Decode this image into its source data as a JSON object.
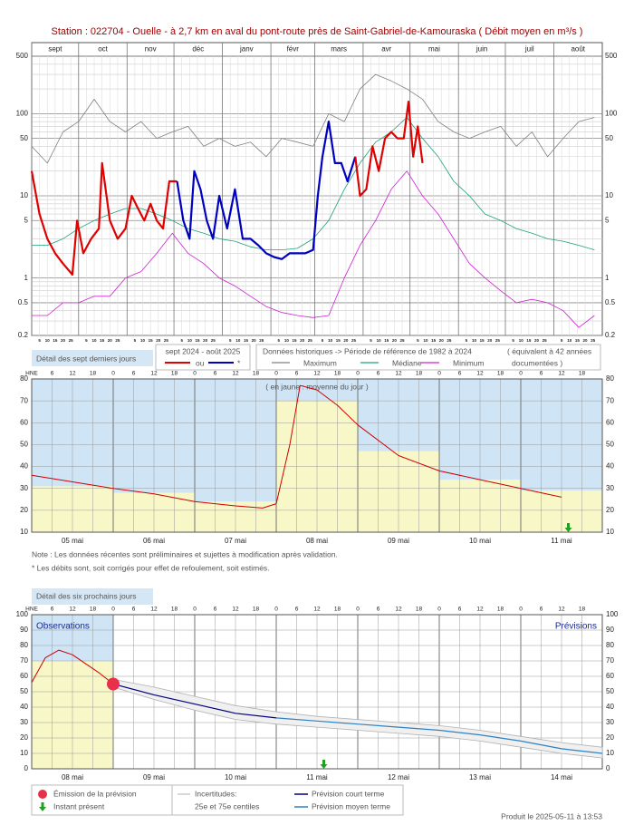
{
  "chart_data": [
    {
      "type": "line",
      "log_scale": true,
      "title": "Station : 022704     -  Ouelle - à 2,7 km en aval du pont-route près de Saint-Gabriel-de-Kamouraska   ( Débit moyen en m³/s )",
      "xlim": [
        0,
        365
      ],
      "xticks": [
        {
          "value": 0,
          "label": "sept"
        },
        {
          "value": 30,
          "label": "oct"
        },
        {
          "value": 61,
          "label": "nov"
        },
        {
          "value": 91,
          "label": "déc"
        },
        {
          "value": 122,
          "label": "janv"
        },
        {
          "value": 153,
          "label": "févr"
        },
        {
          "value": 181,
          "label": "mars"
        },
        {
          "value": 212,
          "label": "avr"
        },
        {
          "value": 242,
          "label": "mai"
        },
        {
          "value": 273,
          "label": "juin"
        },
        {
          "value": 303,
          "label": "juil"
        },
        {
          "value": 334,
          "label": "août"
        }
      ],
      "day_ticks": [
        5,
        10,
        15,
        20,
        25
      ],
      "ylim": [
        0.2,
        500
      ],
      "yticks": [
        0.2,
        0.5,
        1,
        5,
        10,
        50,
        100,
        500
      ],
      "minor_yticks": [
        0.3,
        0.4,
        0.6,
        0.7,
        0.8,
        0.9,
        2,
        3,
        4,
        6,
        7,
        8,
        9,
        20,
        30,
        40,
        60,
        70,
        80,
        90,
        200,
        300,
        400
      ],
      "grid": true,
      "legend_title": "sept 2024 - août 2025",
      "history_title": "Données historiques -> Période de référence  de 1982 à 2024",
      "history_note": [
        "( équivalent à 42 années",
        "documentées )"
      ],
      "series": [
        {
          "name": "Maximum",
          "color": "#808080",
          "x": [
            0,
            10,
            20,
            30,
            40,
            50,
            60,
            70,
            80,
            90,
            100,
            110,
            120,
            130,
            140,
            150,
            160,
            170,
            180,
            190,
            200,
            210,
            220,
            230,
            240,
            250,
            260,
            270,
            280,
            290,
            300,
            310,
            320,
            330,
            340,
            350,
            360
          ],
          "values": [
            40,
            25,
            60,
            80,
            150,
            80,
            60,
            80,
            50,
            60,
            70,
            40,
            50,
            40,
            45,
            30,
            50,
            45,
            40,
            100,
            80,
            200,
            300,
            250,
            200,
            150,
            80,
            60,
            50,
            60,
            70,
            40,
            60,
            30,
            50,
            80,
            90
          ]
        },
        {
          "name": "Médiane",
          "color": "#1fa07a",
          "x": [
            0,
            10,
            20,
            30,
            40,
            50,
            60,
            70,
            80,
            90,
            100,
            110,
            120,
            130,
            140,
            150,
            160,
            170,
            180,
            190,
            200,
            210,
            220,
            230,
            240,
            250,
            260,
            270,
            280,
            290,
            300,
            310,
            320,
            330,
            340,
            350,
            360
          ],
          "values": [
            2.5,
            2.5,
            3,
            4,
            5,
            6,
            7,
            7,
            6,
            5,
            4,
            3.5,
            3,
            2.8,
            2.4,
            2.2,
            2.2,
            2.3,
            3,
            5,
            12,
            25,
            45,
            60,
            90,
            50,
            30,
            15,
            10,
            6,
            5,
            4,
            3.5,
            3,
            2.8,
            2.5,
            2.2
          ]
        },
        {
          "name": "Minimum",
          "color": "#d020d0",
          "x": [
            0,
            10,
            20,
            30,
            40,
            50,
            60,
            70,
            80,
            90,
            100,
            110,
            120,
            130,
            140,
            150,
            160,
            170,
            180,
            190,
            200,
            210,
            220,
            230,
            240,
            250,
            260,
            270,
            280,
            290,
            300,
            310,
            320,
            330,
            340,
            350,
            360
          ],
          "values": [
            0.35,
            0.35,
            0.5,
            0.5,
            0.6,
            0.6,
            1,
            1.2,
            2,
            3.5,
            2,
            1.5,
            1,
            0.8,
            0.6,
            0.45,
            0.38,
            0.35,
            0.33,
            0.35,
            1,
            2.5,
            5,
            12,
            20,
            10,
            6,
            3,
            1.5,
            1,
            0.7,
            0.5,
            0.55,
            0.5,
            0.4,
            0.25,
            0.35
          ]
        },
        {
          "name": "ou",
          "color": "#e00000",
          "x": [
            0,
            5,
            10,
            15,
            20,
            26,
            29,
            33,
            38,
            43,
            45,
            50,
            55,
            60,
            64,
            68,
            72,
            76,
            80,
            84,
            88,
            93
          ],
          "values": [
            20,
            6,
            3,
            2,
            1.5,
            1.1,
            5,
            2,
            3,
            4,
            25,
            5,
            3,
            4,
            10,
            7,
            5,
            8,
            5,
            4,
            15,
            15
          ]
        },
        {
          "name": "*",
          "color": "#0000c0",
          "x": [
            93,
            97,
            101,
            104,
            108,
            112,
            116,
            120,
            125,
            130,
            135,
            140,
            145,
            150,
            155,
            160,
            165,
            170,
            175,
            180,
            183,
            186,
            190,
            194,
            198,
            202,
            207
          ],
          "values": [
            15,
            5,
            3,
            20,
            12,
            5,
            3,
            10,
            4,
            12,
            3,
            3,
            2.5,
            2,
            1.8,
            1.7,
            2,
            2,
            2,
            2.2,
            10,
            30,
            80,
            25,
            25,
            15,
            30
          ]
        },
        {
          "name": "ou",
          "color": "#e00000",
          "x": [
            207,
            210,
            214,
            218,
            222,
            226,
            230,
            234,
            238,
            241,
            244,
            247,
            250
          ],
          "values": [
            30,
            10,
            12,
            40,
            20,
            50,
            60,
            50,
            50,
            140,
            30,
            70,
            25
          ]
        }
      ]
    },
    {
      "type": "line",
      "title": "Détail des sept derniers jours",
      "categories": [
        "05 mai",
        "06 mai",
        "07 mai",
        "08 mai",
        "09 mai",
        "10 mai",
        "11 mai"
      ],
      "hour_axis_label": "HNE",
      "hour_ticks": [
        6,
        12,
        18,
        0
      ],
      "xlim": [
        0,
        168
      ],
      "ylim": [
        10,
        80
      ],
      "yticks": [
        10,
        20,
        30,
        40,
        50,
        60,
        70,
        80
      ],
      "grid": true,
      "annotation": "( en jaune : moyenne du jour )",
      "daily_means": [
        31,
        28,
        24,
        70,
        47,
        34,
        29
      ],
      "daily_mean_color": "#f7f7c8",
      "background_color": "#cfe5f6",
      "color": "#d00000",
      "x": [
        0,
        12,
        24,
        36,
        48,
        60,
        68,
        72,
        76,
        79,
        84,
        90,
        96,
        108,
        120,
        132,
        144,
        156
      ],
      "values": [
        36,
        33,
        30,
        27.5,
        24,
        22,
        21,
        23,
        50,
        77,
        75,
        68,
        59,
        45,
        38,
        34,
        30,
        26
      ],
      "present_x": 158,
      "present_color": "#20a020",
      "notes": [
        "Note : Les données récentes sont préliminaires et sujettes à modification après validation.",
        "* Les débits sont, soit corrigés pour effet de refoulement, soit estimés."
      ]
    },
    {
      "type": "forecast",
      "title": "Détail des six prochains jours",
      "categories": [
        "08 mai",
        "09 mai",
        "10 mai",
        "11 mai",
        "12 mai",
        "13 mai",
        "14 mai"
      ],
      "hour_axis_label": "HNE",
      "hour_ticks": [
        6,
        12,
        18,
        0
      ],
      "xlim": [
        0,
        168
      ],
      "ylim": [
        0,
        100
      ],
      "yticks": [
        0,
        10,
        20,
        30,
        40,
        50,
        60,
        70,
        80,
        90,
        100
      ],
      "grid": true,
      "observations_label": "Observations",
      "forecast_label": "Prévisions",
      "daily_means": [
        70,
        null,
        null,
        null,
        null,
        null,
        null
      ],
      "daily_mean_color": "#f7f7c8",
      "background_color": "#cfe5f6",
      "color": "#d00000",
      "x": [
        0,
        4,
        8,
        12,
        16,
        20,
        24
      ],
      "values": [
        56,
        72,
        77,
        74,
        68,
        62,
        55
      ],
      "uncertainty": {
        "name": "Incertitudes:",
        "sublabel": "25e et 75e centiles",
        "color": "#b0b0b0",
        "x": [
          24,
          36,
          48,
          60,
          72,
          84,
          96,
          108,
          120,
          132,
          144,
          156,
          168
        ],
        "upper": [
          58,
          53,
          47,
          41,
          37,
          34,
          32,
          30,
          28,
          25,
          21,
          17,
          14
        ],
        "lower": [
          53,
          45,
          38,
          32,
          29,
          27,
          25,
          23,
          21,
          18,
          14,
          10,
          7
        ]
      },
      "short_term": {
        "name": "Prévision court terme",
        "color": "#000080",
        "x": [
          24,
          36,
          48,
          60,
          72
        ],
        "values": [
          55,
          48,
          42,
          36,
          33
        ]
      },
      "medium_term": {
        "name": "Prévision moyen terme",
        "color": "#2f80c0",
        "x": [
          72,
          84,
          96,
          108,
          120,
          132,
          144,
          156,
          168
        ],
        "values": [
          33,
          31,
          29,
          27,
          25,
          22,
          18,
          13,
          10
        ]
      },
      "emission": {
        "name": "Émission de la prévision",
        "x": 24,
        "value": 55,
        "color": "#e8304a"
      },
      "present": {
        "name": "Instant présent",
        "x": 86,
        "color": "#20a020"
      },
      "footer": "Produit le 2025-05-11 à 13:53"
    }
  ]
}
